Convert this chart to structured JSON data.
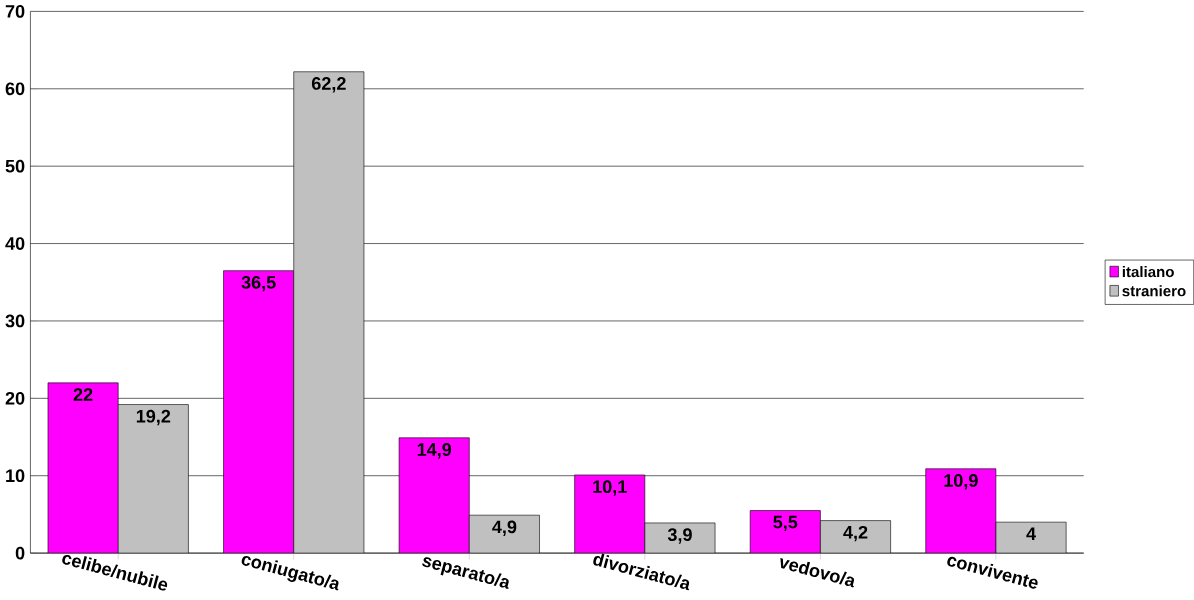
{
  "chart_data": {
    "type": "bar",
    "categories": [
      "celibe/nubile",
      "coniugato/a",
      "separato/a",
      "divorziato/a",
      "vedovo/a",
      "convivente"
    ],
    "series": [
      {
        "name": "italiano",
        "color": "#ff00ff",
        "values": [
          22,
          36.5,
          14.9,
          10.1,
          5.5,
          10.9
        ],
        "value_labels": [
          "22",
          "36,5",
          "14,9",
          "10,1",
          "5,5",
          "10,9"
        ]
      },
      {
        "name": "straniero",
        "color": "#c0c0c0",
        "values": [
          19.2,
          62.2,
          4.9,
          3.9,
          4.2,
          4
        ],
        "value_labels": [
          "19,2",
          "62,2",
          "4,9",
          "3,9",
          "4,2",
          "4"
        ]
      }
    ],
    "ylim": [
      0,
      70
    ],
    "yticks": [
      0,
      10,
      20,
      30,
      40,
      50,
      60,
      70
    ],
    "grid": "y",
    "legend": "right"
  }
}
